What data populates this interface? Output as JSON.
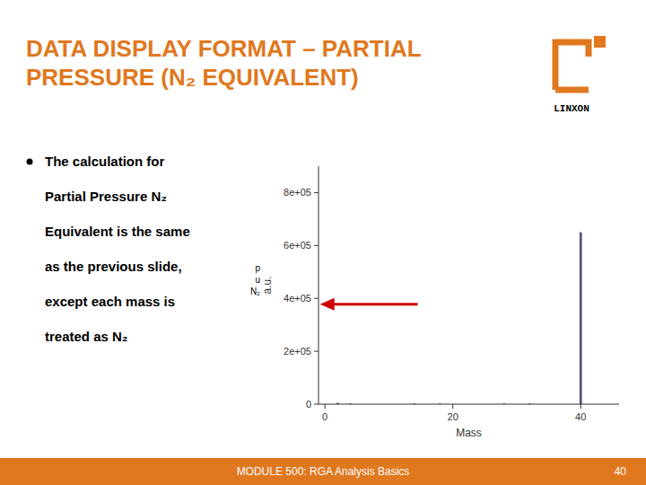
{
  "chart_data": {
    "type": "bar",
    "title": "DATA DISPLAY FORMAT – PARTIAL PRESSURE (N₂ EQUIVALENT)",
    "x_label": "Mass",
    "y_label": "a.u.",
    "x": [
      2,
      4,
      14,
      18,
      28,
      32,
      40
    ],
    "values": [
      5000,
      3000,
      3000,
      3000,
      3000,
      3000,
      650000
    ],
    "color": "#5a5a7a",
    "xlim": [
      -1,
      46
    ],
    "xticks": [
      0,
      20,
      40
    ],
    "ylim": [
      0,
      900000
    ],
    "yticks": [
      0,
      {
        "value": 200000,
        "label": "2e+05"
      },
      {
        "value": 400000,
        "label": "4e+05"
      },
      {
        "value": 600000,
        "label": "6e+05"
      },
      {
        "value": 800000,
        "label": "8e+05"
      }
    ],
    "grid": false,
    "annotations": [
      "The calculation for",
      "Partial Pressure N₂",
      "Equivalent is the same",
      "as the previous slide,",
      "except each mass is",
      "treated as N₂",
      "MODULE 500: RGA Analysis Basics",
      "40",
      "LINXON",
      "p\nu\nN₂"
    ]
  }
}
